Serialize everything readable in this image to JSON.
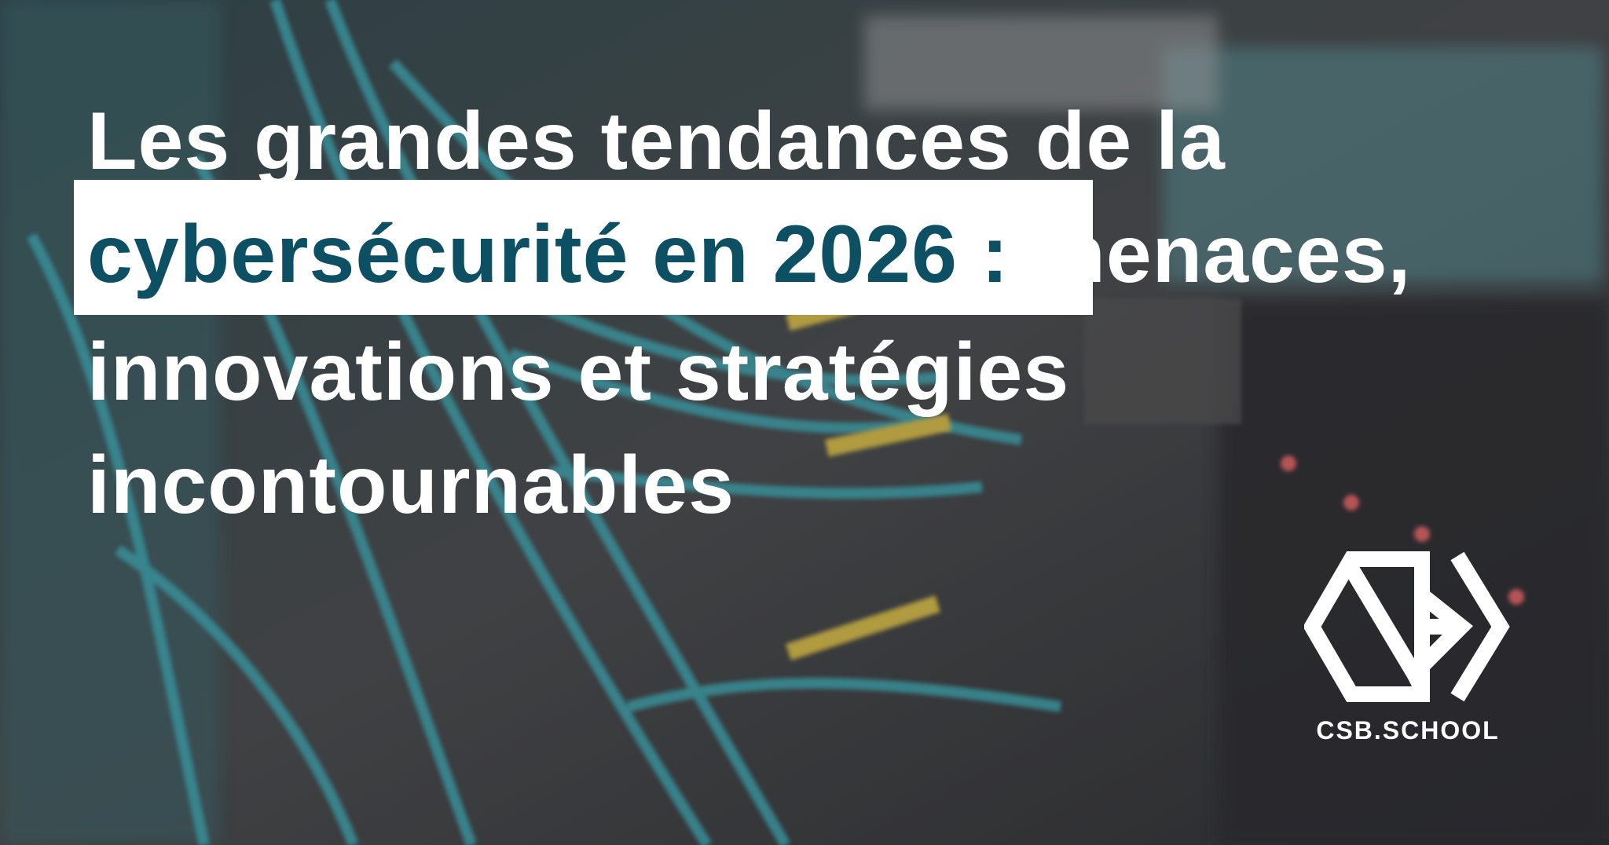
{
  "title": {
    "line1": "Les grandes tendances de la",
    "highlight": "cybersécurité en 2026 :",
    "line2_rest": " menaces,",
    "line3": "innovations et stratégies",
    "line4": "incontournables"
  },
  "colors": {
    "highlight_bg": "#ffffff",
    "highlight_text": "#0d4f63",
    "title_text": "#ffffff",
    "cable_accent": "#3fb6c2"
  },
  "logo": {
    "icon": "csb-hexagon-logo-icon",
    "brand_text": "CSB.SCHOOL"
  }
}
